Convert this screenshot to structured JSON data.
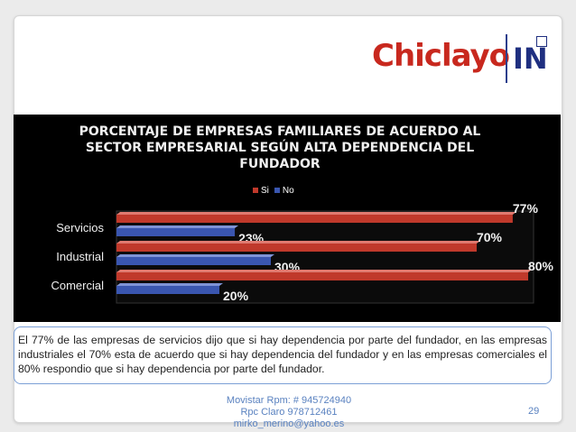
{
  "logo": {
    "main": "Chiclayo",
    "suffix": "IN"
  },
  "chart_data": {
    "type": "bar",
    "orientation": "horizontal",
    "title": "PORCENTAJE DE EMPRESAS FAMILIARES DE ACUERDO AL SECTOR EMPRESARIAL SEGÚN ALTA DEPENDENCIA DEL FUNDADOR",
    "title_lines": [
      "PORCENTAJE DE EMPRESAS FAMILIARES DE ACUERDO AL",
      "SECTOR EMPRESARIAL SEGÚN ALTA DEPENDENCIA DEL",
      "FUNDADOR"
    ],
    "categories": [
      "Servicios",
      "Industrial",
      "Comercial"
    ],
    "series": [
      {
        "name": "Si",
        "values": [
          77,
          70,
          80
        ],
        "labels": [
          "77%",
          "70%",
          "80%"
        ],
        "color": "#c0392b"
      },
      {
        "name": "No",
        "values": [
          23,
          30,
          20
        ],
        "labels": [
          "23%",
          "30%",
          "20%"
        ],
        "color": "#3a56b0"
      }
    ],
    "legend_position": "top",
    "grid": false
  },
  "caption": "El 77% de las empresas de servicios dijo que si hay dependencia por parte del  fundador, en las empresas industriales el 70% esta de acuerdo que si hay dependencia del fundador y en las empresas comerciales el 80% respondio que si hay dependencia por parte del fundador.",
  "footer": {
    "line1": "Movistar Rpm: # 945724940",
    "line2": "Rpc Claro 978712461",
    "line3": "mirko_merino@yahoo.es"
  },
  "page_number": "29"
}
